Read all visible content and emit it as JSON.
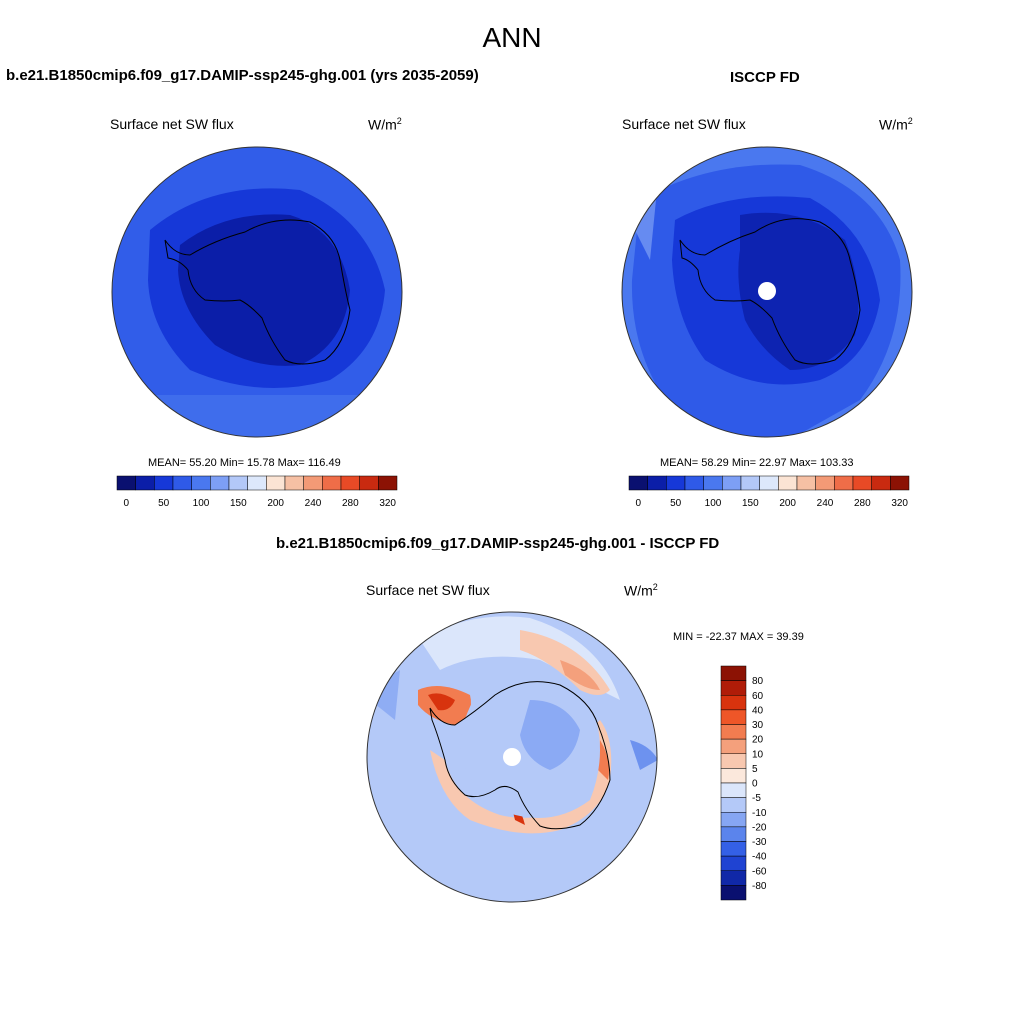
{
  "page_title": "ANN",
  "panel_left": {
    "header": "b.e21.B1850cmip6.f09_g17.DAMIP-ssp245-ghg.001 (yrs 2035-2059)",
    "variable": "Surface net SW flux",
    "units": "W/m",
    "units_sup": "2",
    "stats": "MEAN=  55.20  Min=  15.78  Max= 116.49"
  },
  "panel_right": {
    "header": "ISCCP FD",
    "variable": "Surface net SW flux",
    "units": "W/m",
    "units_sup": "2",
    "stats": "MEAN=  58.29  Min=  22.97  Max= 103.33"
  },
  "panel_diff": {
    "header": "b.e21.B1850cmip6.f09_g17.DAMIP-ssp245-ghg.001 - ISCCP FD",
    "variable": "Surface net SW flux",
    "units": "W/m",
    "units_sup": "2",
    "stats": "MIN = -22.37 MAX =  39.39"
  },
  "colorbar_abs": {
    "colors": [
      "#0a1070",
      "#0b1ea8",
      "#1638d8",
      "#2f5ae8",
      "#4a78ef",
      "#7d9ff5",
      "#b3c8f8",
      "#dde8fb",
      "#fbe4d4",
      "#f6c0a4",
      "#f39a76",
      "#ef6d48",
      "#e84a26",
      "#c92a10",
      "#8c1204"
    ],
    "labels": [
      "0",
      "50",
      "100",
      "150",
      "200",
      "240",
      "280",
      "320"
    ]
  },
  "colorbar_diff": {
    "colors": [
      "#8c1204",
      "#b01c08",
      "#d8330e",
      "#ee5628",
      "#f27c50",
      "#f4a07c",
      "#f8c8b0",
      "#fbe8dc",
      "#dbe6fb",
      "#b4c9f8",
      "#86a6f3",
      "#5b84ec",
      "#3460e6",
      "#1f43d2",
      "#1028a8",
      "#0a1070"
    ],
    "labels": [
      "80",
      "60",
      "40",
      "30",
      "20",
      "10",
      "5",
      "0",
      "-5",
      "-10",
      "-20",
      "-30",
      "-40",
      "-60",
      "-80"
    ]
  }
}
